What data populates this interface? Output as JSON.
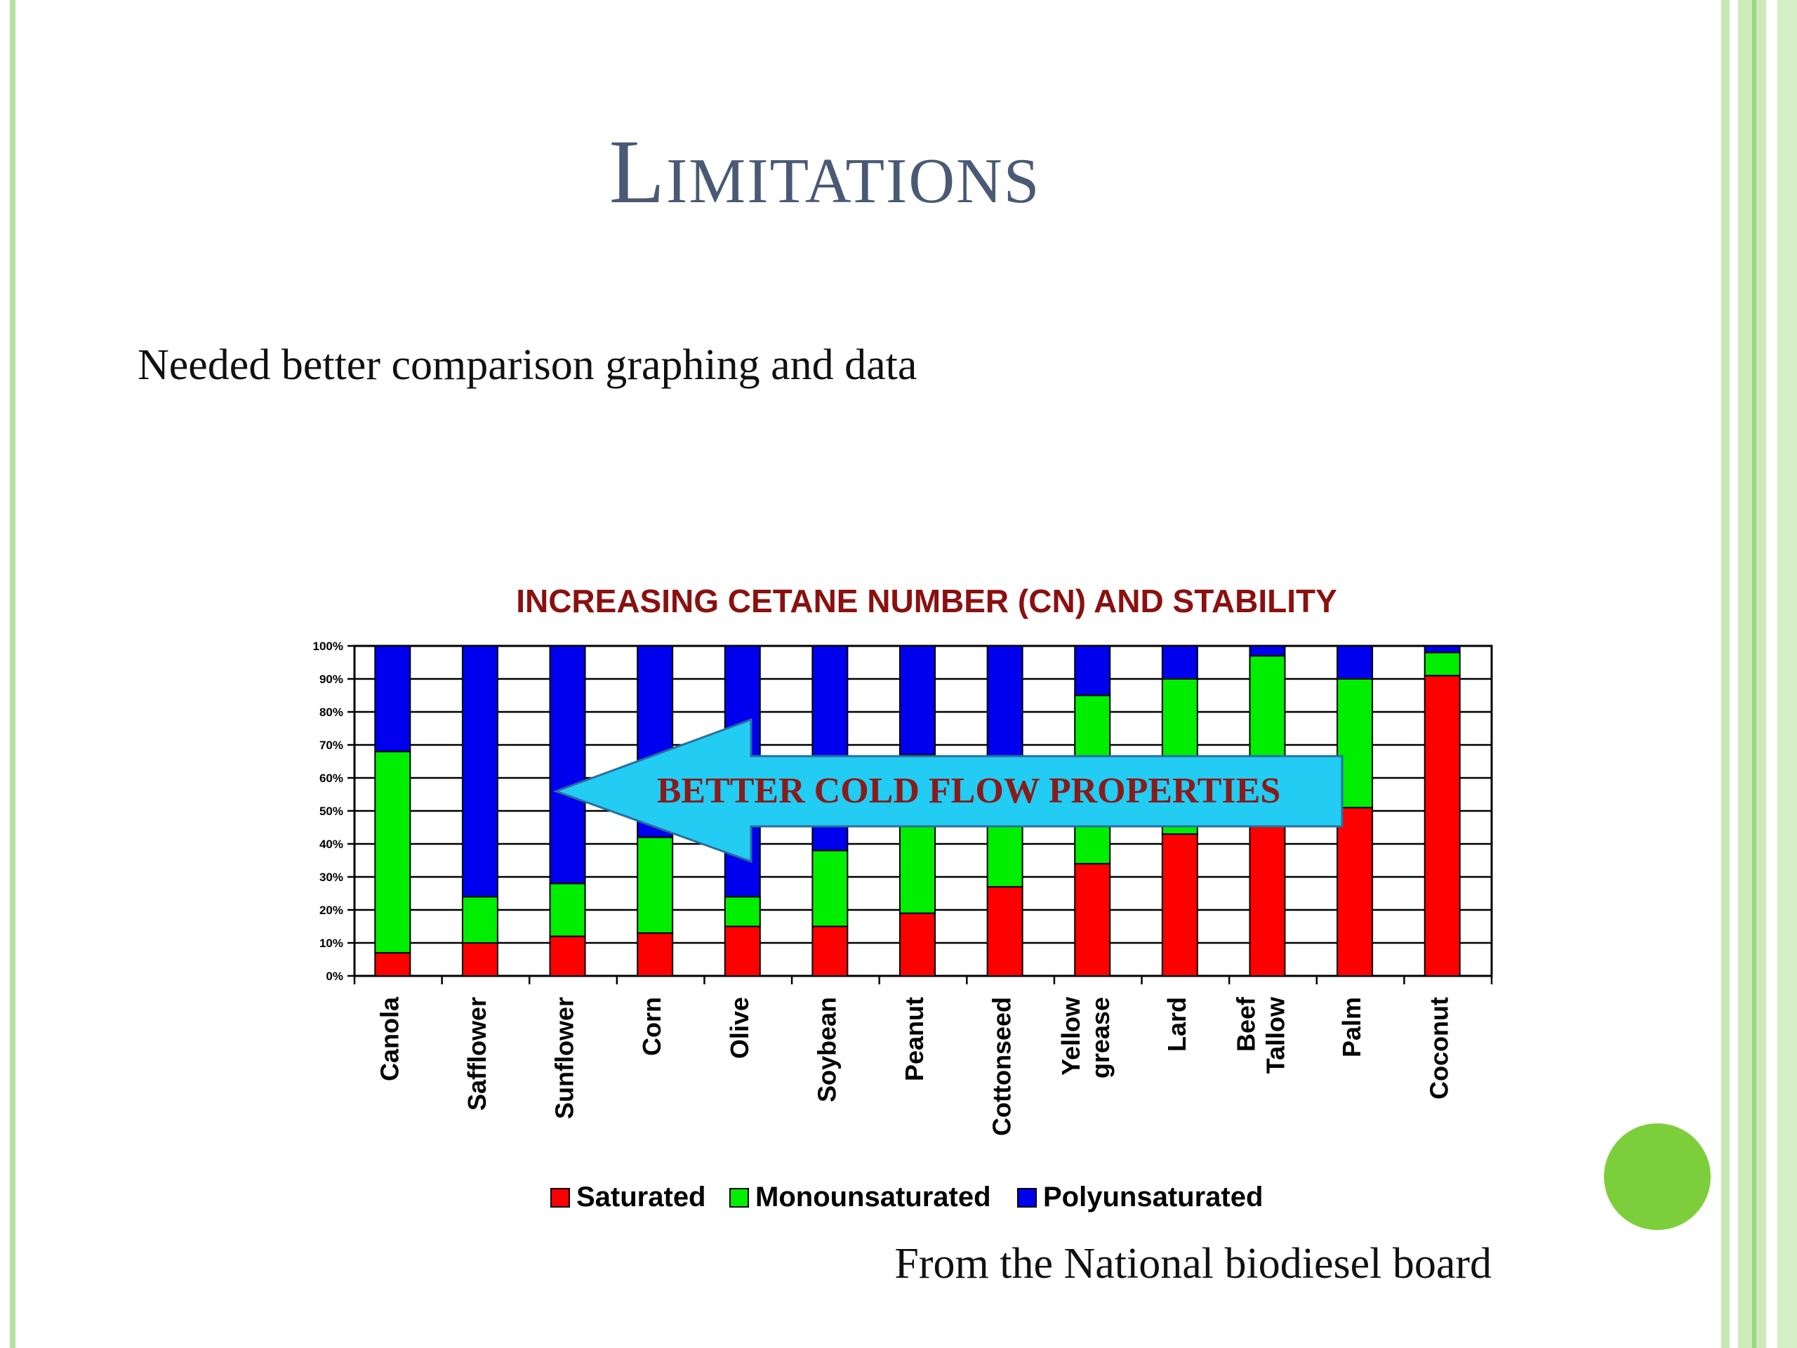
{
  "slide": {
    "title": "Limitations",
    "body": "Needed better comparison graphing and data",
    "source": "From the National biodiesel board"
  },
  "chart_data": {
    "type": "bar",
    "stacked": true,
    "title": "INCREASING CETANE NUMBER (CN) AND STABILITY",
    "annotation": "BETTER COLD FLOW PROPERTIES",
    "categories": [
      "Canola",
      "Safflower",
      "Sunflower",
      "Corn",
      "Olive",
      "Soybean",
      "Peanut",
      "Cottonseed",
      "Yellow grease",
      "Lard",
      "Beef Tallow",
      "Palm",
      "Coconut"
    ],
    "series": [
      {
        "name": "Saturated",
        "color": "#ff0000",
        "values": [
          7,
          10,
          12,
          13,
          15,
          15,
          19,
          27,
          34,
          43,
          48,
          51,
          91
        ]
      },
      {
        "name": "Monounsaturated",
        "color": "#00ee00",
        "values": [
          61,
          14,
          16,
          29,
          9,
          23,
          48,
          19,
          51,
          47,
          49,
          39,
          7
        ]
      },
      {
        "name": "Polyunsaturated",
        "color": "#0000ee",
        "values": [
          32,
          76,
          72,
          58,
          76,
          62,
          33,
          54,
          15,
          10,
          3,
          10,
          2
        ]
      }
    ],
    "yticks": [
      "0%",
      "10%",
      "20%",
      "30%",
      "40%",
      "50%",
      "60%",
      "70%",
      "80%",
      "90%",
      "100%"
    ],
    "ylim": [
      0,
      100
    ],
    "grid": true,
    "legend_position": "bottom"
  }
}
